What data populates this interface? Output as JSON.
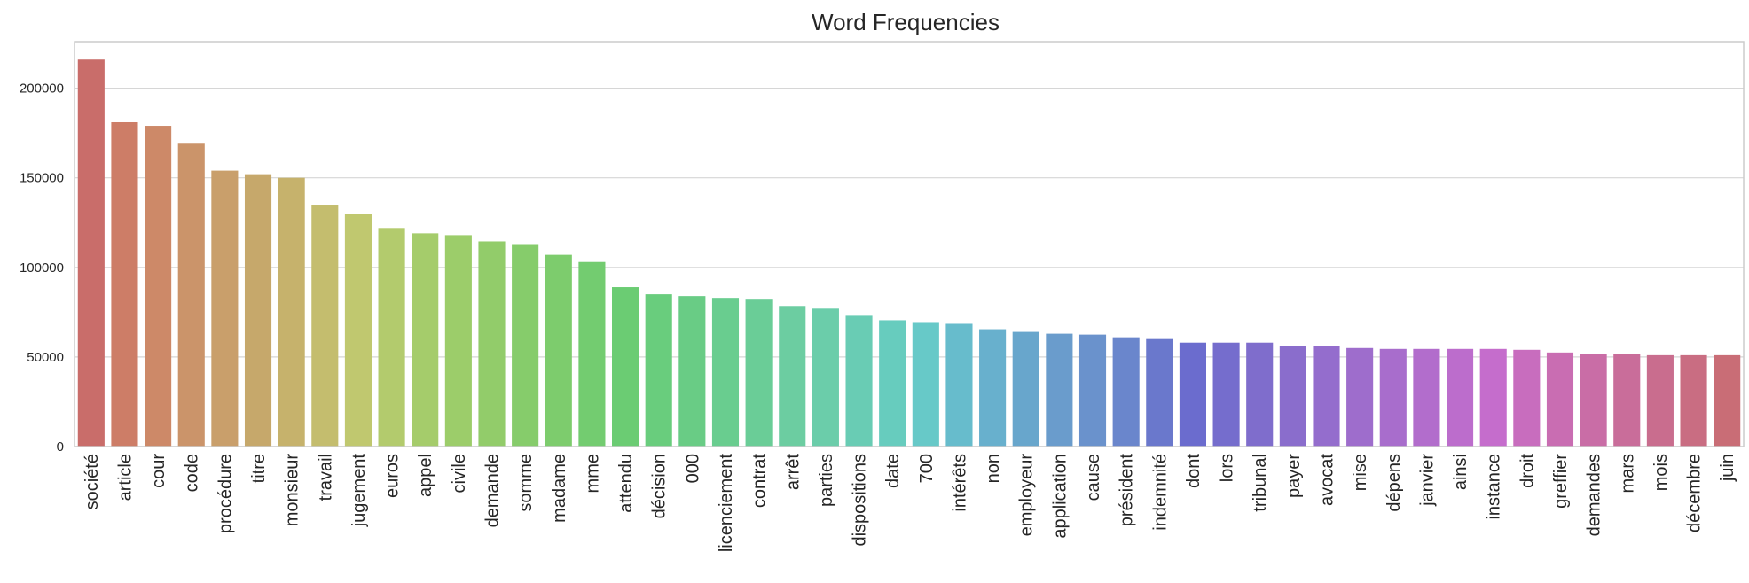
{
  "chart_data": {
    "type": "bar",
    "title": "Word Frequencies",
    "xlabel": "",
    "ylabel": "",
    "ylim": [
      0,
      226000
    ],
    "yticks": [
      0,
      50000,
      100000,
      150000,
      200000
    ],
    "grid": "horizontal",
    "legend": "none",
    "categories": [
      "société",
      "article",
      "cour",
      "code",
      "procédure",
      "titre",
      "monsieur",
      "travail",
      "jugement",
      "euros",
      "appel",
      "civile",
      "demande",
      "somme",
      "madame",
      "mme",
      "attendu",
      "décision",
      "000",
      "licenciement",
      "contrat",
      "arrêt",
      "parties",
      "dispositions",
      "date",
      "700",
      "intérêts",
      "non",
      "employeur",
      "application",
      "cause",
      "président",
      "indemnité",
      "dont",
      "lors",
      "tribunal",
      "payer",
      "avocat",
      "mise",
      "dépens",
      "janvier",
      "ainsi",
      "instance",
      "droit",
      "greffier",
      "demandes",
      "mars",
      "mois",
      "décembre",
      "juin"
    ],
    "values": [
      216000,
      181000,
      179000,
      169500,
      154000,
      152000,
      150000,
      135000,
      130000,
      122000,
      119000,
      118000,
      114500,
      113000,
      107000,
      103000,
      89000,
      85000,
      84000,
      83000,
      82000,
      78500,
      77000,
      73000,
      70500,
      69500,
      68500,
      65500,
      64000,
      63000,
      62500,
      61000,
      60000,
      58000,
      58000,
      58000,
      56000,
      56000,
      55000,
      54500,
      54500,
      54500,
      54500,
      54000,
      52500,
      51500,
      51500,
      51000,
      51000,
      51000
    ],
    "colors": [
      "#c96d6a",
      "#cd7d67",
      "#cd8968",
      "#cb946a",
      "#c99f6b",
      "#c6a86b",
      "#c6b26c",
      "#c4bd6e",
      "#c0c86f",
      "#b3cb6d",
      "#a5cc6b",
      "#9ccd6a",
      "#92cc6a",
      "#86cc6b",
      "#7dcc6d",
      "#73cc70",
      "#6bcc73",
      "#69cd7d",
      "#69cc85",
      "#69cd8f",
      "#6acd97",
      "#6ccda1",
      "#6bcdaa",
      "#69ccb4",
      "#67ccbe",
      "#67c9c8",
      "#67bccc",
      "#68b0cd",
      "#68a6cc",
      "#6a9ccc",
      "#6a92cc",
      "#6a86cc",
      "#6a78cc",
      "#6b6cce",
      "#756dcd",
      "#7f6dcc",
      "#8a6dcc",
      "#946dcd",
      "#9e6dcc",
      "#a86dcc",
      "#b26dcc",
      "#bc6dcc",
      "#c56dcc",
      "#c86dbe",
      "#c96db2",
      "#c96da6",
      "#c96d9a",
      "#c96d8e",
      "#c96d82",
      "#c96d76"
    ]
  }
}
